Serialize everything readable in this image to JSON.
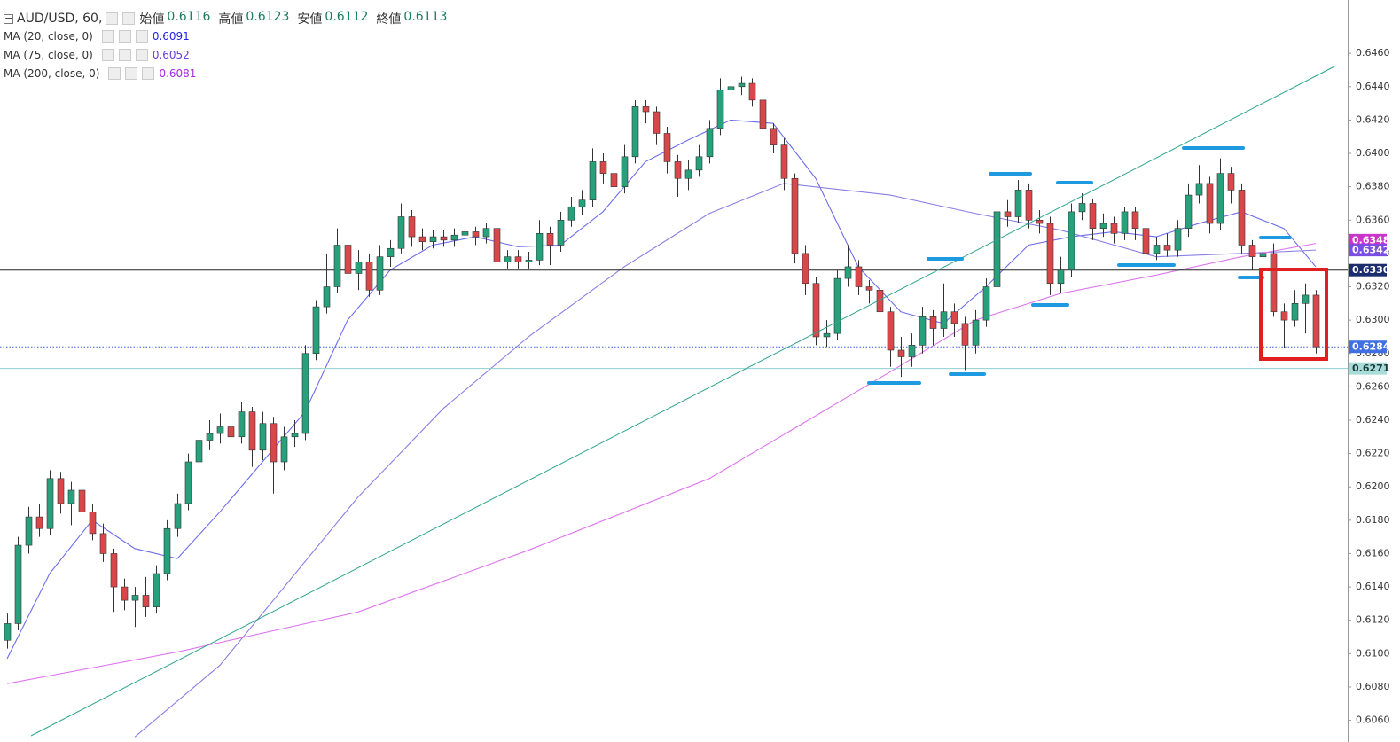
{
  "chart_data": {
    "type": "candlestick",
    "header": {
      "symbol": "AUD/USD, 60,",
      "ohlc_labels": [
        "始値",
        "高値",
        "安値",
        "終値"
      ],
      "ohlc_values": [
        0.6116,
        0.6123,
        0.6112,
        0.6113
      ],
      "value_color": "#1a7e5c"
    },
    "ylim": [
      0.6047,
      0.6492
    ],
    "yticks": [
      {
        "value": 0.646,
        "label": "0.6460"
      },
      {
        "value": 0.644,
        "label": "0.6440"
      },
      {
        "value": 0.642,
        "label": "0.6420"
      },
      {
        "value": 0.64,
        "label": "0.6400"
      },
      {
        "value": 0.638,
        "label": "0.6380"
      },
      {
        "value": 0.636,
        "label": "0.6360"
      },
      {
        "value": 0.634,
        "label": "0.6340"
      },
      {
        "value": 0.632,
        "label": "0.6320"
      },
      {
        "value": 0.63,
        "label": "0.6300"
      },
      {
        "value": 0.628,
        "label": "0.6280"
      },
      {
        "value": 0.626,
        "label": "0.6260"
      },
      {
        "value": 0.624,
        "label": "0.6240"
      },
      {
        "value": 0.622,
        "label": "0.6220"
      },
      {
        "value": 0.62,
        "label": "0.6200"
      },
      {
        "value": 0.618,
        "label": "0.6180"
      },
      {
        "value": 0.616,
        "label": "0.6160"
      },
      {
        "value": 0.614,
        "label": "0.6140"
      },
      {
        "value": 0.612,
        "label": "0.6120"
      },
      {
        "value": 0.61,
        "label": "0.6100"
      },
      {
        "value": 0.608,
        "label": "0.6080"
      },
      {
        "value": 0.606,
        "label": "0.6060"
      }
    ],
    "up_color": "#26a17b",
    "down_color": "#d9474a",
    "ohlc": [
      [
        0.6108,
        0.6124,
        0.6103,
        0.6118
      ],
      [
        0.6118,
        0.617,
        0.6114,
        0.6165
      ],
      [
        0.6165,
        0.6188,
        0.616,
        0.6182
      ],
      [
        0.6182,
        0.619,
        0.617,
        0.6175
      ],
      [
        0.6175,
        0.621,
        0.6171,
        0.6205
      ],
      [
        0.6205,
        0.6209,
        0.6184,
        0.619
      ],
      [
        0.619,
        0.6203,
        0.6177,
        0.6198
      ],
      [
        0.6198,
        0.6201,
        0.618,
        0.6185
      ],
      [
        0.6185,
        0.619,
        0.6168,
        0.6172
      ],
      [
        0.6172,
        0.6178,
        0.6155,
        0.616
      ],
      [
        0.616,
        0.6163,
        0.6125,
        0.614
      ],
      [
        0.614,
        0.6145,
        0.6126,
        0.6132
      ],
      [
        0.6132,
        0.614,
        0.6116,
        0.6135
      ],
      [
        0.6135,
        0.6146,
        0.6122,
        0.6128
      ],
      [
        0.6128,
        0.6153,
        0.6124,
        0.6148
      ],
      [
        0.6148,
        0.618,
        0.6144,
        0.6175
      ],
      [
        0.6175,
        0.6196,
        0.617,
        0.619
      ],
      [
        0.619,
        0.622,
        0.6186,
        0.6215
      ],
      [
        0.6215,
        0.6238,
        0.621,
        0.6228
      ],
      [
        0.6228,
        0.624,
        0.6222,
        0.6232
      ],
      [
        0.6232,
        0.6244,
        0.6226,
        0.6236
      ],
      [
        0.6236,
        0.6242,
        0.6222,
        0.623
      ],
      [
        0.623,
        0.6251,
        0.6226,
        0.6245
      ],
      [
        0.6245,
        0.6248,
        0.6212,
        0.6222
      ],
      [
        0.6222,
        0.6245,
        0.6216,
        0.6238
      ],
      [
        0.6238,
        0.6242,
        0.6196,
        0.6215
      ],
      [
        0.6215,
        0.6236,
        0.621,
        0.623
      ],
      [
        0.623,
        0.624,
        0.6224,
        0.6232
      ],
      [
        0.6232,
        0.6285,
        0.6228,
        0.628
      ],
      [
        0.628,
        0.6312,
        0.6276,
        0.6308
      ],
      [
        0.6308,
        0.634,
        0.6304,
        0.632
      ],
      [
        0.632,
        0.6355,
        0.6316,
        0.6345
      ],
      [
        0.6345,
        0.635,
        0.6322,
        0.6328
      ],
      [
        0.6328,
        0.6342,
        0.6318,
        0.6335
      ],
      [
        0.6335,
        0.634,
        0.6314,
        0.6318
      ],
      [
        0.6318,
        0.6345,
        0.6315,
        0.6338
      ],
      [
        0.6338,
        0.6348,
        0.6332,
        0.6343
      ],
      [
        0.6343,
        0.637,
        0.634,
        0.6362
      ],
      [
        0.6362,
        0.6366,
        0.6344,
        0.635
      ],
      [
        0.635,
        0.6355,
        0.6342,
        0.6347
      ],
      [
        0.6347,
        0.6354,
        0.6343,
        0.635
      ],
      [
        0.635,
        0.6354,
        0.6344,
        0.6348
      ],
      [
        0.6348,
        0.6355,
        0.6344,
        0.6351
      ],
      [
        0.6351,
        0.6357,
        0.6347,
        0.6353
      ],
      [
        0.6353,
        0.6356,
        0.6345,
        0.635
      ],
      [
        0.635,
        0.6358,
        0.6346,
        0.6355
      ],
      [
        0.6355,
        0.6358,
        0.633,
        0.6335
      ],
      [
        0.6335,
        0.6342,
        0.6331,
        0.6338
      ],
      [
        0.6338,
        0.6342,
        0.6331,
        0.6335
      ],
      [
        0.6335,
        0.6341,
        0.6331,
        0.6336
      ],
      [
        0.6336,
        0.636,
        0.6333,
        0.6352
      ],
      [
        0.6352,
        0.6356,
        0.6333,
        0.6345
      ],
      [
        0.6345,
        0.6365,
        0.6341,
        0.636
      ],
      [
        0.636,
        0.6374,
        0.6356,
        0.6368
      ],
      [
        0.6368,
        0.6378,
        0.6363,
        0.6372
      ],
      [
        0.6372,
        0.6403,
        0.6368,
        0.6395
      ],
      [
        0.6395,
        0.64,
        0.6382,
        0.6388
      ],
      [
        0.6388,
        0.6392,
        0.6376,
        0.638
      ],
      [
        0.638,
        0.6405,
        0.6376,
        0.6398
      ],
      [
        0.6398,
        0.6432,
        0.6394,
        0.6428
      ],
      [
        0.6428,
        0.6432,
        0.6418,
        0.6425
      ],
      [
        0.6425,
        0.6428,
        0.6405,
        0.6412
      ],
      [
        0.6412,
        0.6416,
        0.6388,
        0.6395
      ],
      [
        0.6395,
        0.6399,
        0.6374,
        0.6385
      ],
      [
        0.6385,
        0.6396,
        0.6378,
        0.639
      ],
      [
        0.639,
        0.6405,
        0.6386,
        0.6398
      ],
      [
        0.6398,
        0.642,
        0.6394,
        0.6415
      ],
      [
        0.6415,
        0.6445,
        0.6411,
        0.6438
      ],
      [
        0.6438,
        0.6444,
        0.6432,
        0.644
      ],
      [
        0.644,
        0.6446,
        0.6435,
        0.6442
      ],
      [
        0.6442,
        0.6445,
        0.6428,
        0.6432
      ],
      [
        0.6432,
        0.6436,
        0.641,
        0.6415
      ],
      [
        0.6415,
        0.6418,
        0.64,
        0.6405
      ],
      [
        0.6405,
        0.6409,
        0.6378,
        0.6385
      ],
      [
        0.6385,
        0.6388,
        0.6334,
        0.634
      ],
      [
        0.634,
        0.6345,
        0.6315,
        0.6322
      ],
      [
        0.6322,
        0.6326,
        0.6285,
        0.629
      ],
      [
        0.629,
        0.63,
        0.6284,
        0.6292
      ],
      [
        0.6292,
        0.633,
        0.6288,
        0.6325
      ],
      [
        0.6325,
        0.6345,
        0.632,
        0.6332
      ],
      [
        0.6332,
        0.6336,
        0.6315,
        0.632
      ],
      [
        0.632,
        0.6324,
        0.631,
        0.6318
      ],
      [
        0.6318,
        0.6322,
        0.6298,
        0.6305
      ],
      [
        0.6305,
        0.6308,
        0.6272,
        0.6282
      ],
      [
        0.6282,
        0.629,
        0.6266,
        0.6278
      ],
      [
        0.6278,
        0.6292,
        0.6272,
        0.6285
      ],
      [
        0.6285,
        0.6308,
        0.628,
        0.6302
      ],
      [
        0.6302,
        0.6306,
        0.6285,
        0.6295
      ],
      [
        0.6295,
        0.6322,
        0.629,
        0.6305
      ],
      [
        0.6305,
        0.631,
        0.629,
        0.6298
      ],
      [
        0.6298,
        0.6302,
        0.627,
        0.6285
      ],
      [
        0.6285,
        0.6306,
        0.628,
        0.63
      ],
      [
        0.63,
        0.6325,
        0.6296,
        0.632
      ],
      [
        0.632,
        0.637,
        0.6316,
        0.6365
      ],
      [
        0.6365,
        0.6372,
        0.6356,
        0.6362
      ],
      [
        0.6362,
        0.6384,
        0.6358,
        0.6378
      ],
      [
        0.6378,
        0.6382,
        0.6355,
        0.636
      ],
      [
        0.636,
        0.6366,
        0.6352,
        0.6358
      ],
      [
        0.6358,
        0.6362,
        0.6315,
        0.6322
      ],
      [
        0.6322,
        0.6338,
        0.6316,
        0.633
      ],
      [
        0.633,
        0.637,
        0.6326,
        0.6365
      ],
      [
        0.6365,
        0.6376,
        0.636,
        0.637
      ],
      [
        0.637,
        0.6373,
        0.6348,
        0.6355
      ],
      [
        0.6355,
        0.6364,
        0.635,
        0.6358
      ],
      [
        0.6358,
        0.6362,
        0.6346,
        0.6352
      ],
      [
        0.6352,
        0.6368,
        0.6348,
        0.6365
      ],
      [
        0.6365,
        0.6368,
        0.6348,
        0.6355
      ],
      [
        0.6355,
        0.6358,
        0.6336,
        0.634
      ],
      [
        0.634,
        0.635,
        0.6336,
        0.6345
      ],
      [
        0.6345,
        0.6352,
        0.6338,
        0.6342
      ],
      [
        0.6342,
        0.636,
        0.6338,
        0.6355
      ],
      [
        0.6355,
        0.6382,
        0.635,
        0.6375
      ],
      [
        0.6375,
        0.6393,
        0.637,
        0.6382
      ],
      [
        0.6382,
        0.6386,
        0.6352,
        0.6358
      ],
      [
        0.6358,
        0.6397,
        0.6354,
        0.6388
      ],
      [
        0.6388,
        0.6392,
        0.637,
        0.6378
      ],
      [
        0.6378,
        0.6382,
        0.634,
        0.6345
      ],
      [
        0.6345,
        0.6348,
        0.633,
        0.6338
      ],
      [
        0.6338,
        0.635,
        0.6334,
        0.634
      ],
      [
        0.634,
        0.6346,
        0.6302,
        0.6305
      ],
      [
        0.6305,
        0.631,
        0.6283,
        0.63
      ],
      [
        0.63,
        0.6318,
        0.6296,
        0.631
      ],
      [
        0.631,
        0.6322,
        0.6292,
        0.6315
      ],
      [
        0.6315,
        0.6318,
        0.628,
        0.6284
      ]
    ],
    "series": [
      {
        "name": "MA (20, close, 0)",
        "last": 0.6091,
        "color": "#6b6bef",
        "last_color": "#2323e0",
        "x": [
          0,
          4,
          8,
          12,
          16,
          20,
          24,
          28,
          32,
          36,
          40,
          44,
          48,
          52,
          56,
          60,
          64,
          68,
          72,
          76,
          80,
          84,
          88,
          92,
          96,
          100,
          104,
          108,
          112,
          116,
          120,
          123
        ],
        "values": [
          0.6097,
          0.6148,
          0.618,
          0.6163,
          0.6157,
          0.6185,
          0.6215,
          0.6245,
          0.63,
          0.633,
          0.6345,
          0.635,
          0.6344,
          0.6345,
          0.6365,
          0.6395,
          0.6408,
          0.642,
          0.6418,
          0.6385,
          0.6332,
          0.6305,
          0.6298,
          0.632,
          0.6345,
          0.635,
          0.6353,
          0.635,
          0.6358,
          0.6365,
          0.6355,
          0.6332
        ]
      },
      {
        "name": "MA (75, close, 0)",
        "last": 0.6052,
        "color": "#8a7fe6",
        "last_color": "#6a3fd8",
        "x": [
          12,
          20,
          33,
          41,
          49,
          58,
          66,
          73,
          83,
          91,
          99,
          108,
          116,
          123
        ],
        "values": [
          0.605,
          0.6093,
          0.6194,
          0.6247,
          0.629,
          0.6332,
          0.6364,
          0.6382,
          0.6375,
          0.6364,
          0.6354,
          0.6338,
          0.634,
          0.6342
        ]
      },
      {
        "name": "MA (200, close, 0)",
        "last": 0.6081,
        "color": "#dd77ee",
        "last_color": "#a52ee0",
        "x": [
          0,
          16,
          33,
          49,
          66,
          83,
          91,
          99,
          108,
          116,
          123
        ],
        "values": [
          0.6082,
          0.6101,
          0.6125,
          0.6162,
          0.6205,
          0.6269,
          0.63,
          0.6316,
          0.6327,
          0.6338,
          0.6346
        ]
      }
    ],
    "price_tags": [
      {
        "value": 0.6348,
        "label": "0.6348",
        "color": "#cc33cc",
        "text_color": "#ffffff"
      },
      {
        "value": 0.6342,
        "label": "0.6342",
        "color": "#7a4fe0",
        "text_color": "#ffffff"
      },
      {
        "value": 0.633,
        "label": "0.6330",
        "color": "#1c2d6e",
        "text_color": "#ffffff",
        "line": "solid",
        "line_color": "#222222"
      },
      {
        "value": 0.6284,
        "label": "0.6284",
        "color": "#3f6fe0",
        "text_color": "#ffffff",
        "line": "dotted",
        "line_color": "#3f5fe0"
      },
      {
        "value": 0.6271,
        "label": "0.6271",
        "color": "#a9dcd8",
        "text_color": "#1a3b3b",
        "line": "solid",
        "line_color": "#8fcfcf"
      }
    ]
  }
}
